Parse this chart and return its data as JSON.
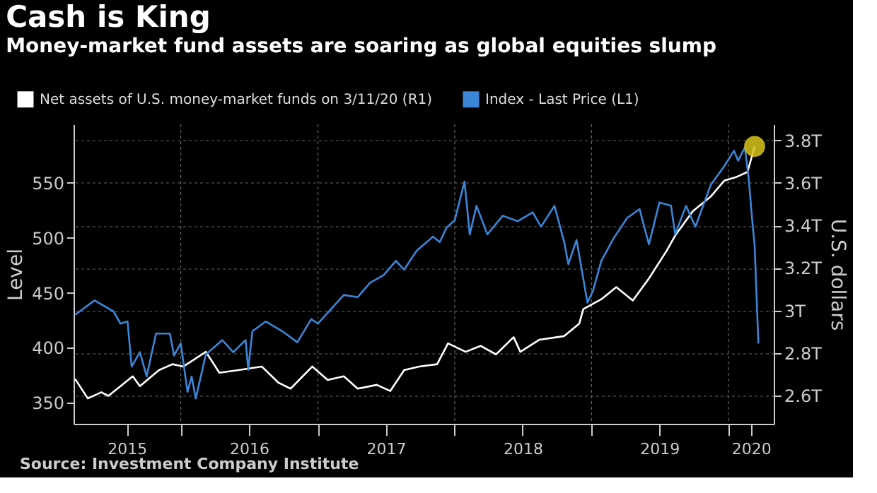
{
  "chart_data": {
    "type": "line",
    "title": "Cash is King",
    "subtitle": "Money-market fund assets are soaring as global equities slump",
    "ylabel": "Level",
    "y2label": "U.S. dollars",
    "annotations": [
      "Source: Investment Company Institute"
    ],
    "xlim": [
      "2015-03-21",
      "2020-05-01"
    ],
    "xticks": [
      {
        "value": "2015-08-10",
        "label": "2015"
      },
      {
        "value": "2016-01-01",
        "label": null
      },
      {
        "value": "2016-07-01",
        "label": "2016"
      },
      {
        "value": "2017-01-01",
        "label": null
      },
      {
        "value": "2017-07-01",
        "label": "2017"
      },
      {
        "value": "2018-01-01",
        "label": null
      },
      {
        "value": "2018-07-01",
        "label": "2018"
      },
      {
        "value": "2019-01-01",
        "label": null
      },
      {
        "value": "2019-07-01",
        "label": "2019"
      },
      {
        "value": "2020-01-01",
        "label": null
      },
      {
        "value": "2020-03-01",
        "label": "2020"
      }
    ],
    "ylim": [
      331,
      603
    ],
    "yticks": [
      350,
      400,
      450,
      500,
      550
    ],
    "y2lim": [
      2.468,
      3.875
    ],
    "y2ticks": [
      {
        "value": 2.6,
        "label": "2.6T"
      },
      {
        "value": 2.8,
        "label": "2.8T"
      },
      {
        "value": 3,
        "label": "3T"
      },
      {
        "value": 3.2,
        "label": "3.2T"
      },
      {
        "value": 3.4,
        "label": "3.4T"
      },
      {
        "value": 3.6,
        "label": "3.6T"
      },
      {
        "value": 3.8,
        "label": "3.8T"
      }
    ],
    "grid": true,
    "legend": "top left",
    "line_style": "solid",
    "marker": "none",
    "series": [
      {
        "name": "Net assets of U.S. money-market funds on 3/11/20 (R1)",
        "color": "#ffffff",
        "axis": "y2",
        "x": [
          "2015-03-25",
          "2015-04-28",
          "2015-06-03",
          "2015-06-22",
          "2015-08-26",
          "2015-09-14",
          "2015-11-04",
          "2015-12-10",
          "2016-01-08",
          "2016-03-08",
          "2016-04-13",
          "2016-06-03",
          "2016-08-04",
          "2016-09-17",
          "2016-10-20",
          "2016-12-17",
          "2017-01-27",
          "2017-03-11",
          "2017-04-17",
          "2017-06-07",
          "2017-07-13",
          "2017-08-19",
          "2017-09-28",
          "2017-11-15",
          "2017-12-14",
          "2018-01-30",
          "2018-03-11",
          "2018-04-21",
          "2018-06-07",
          "2018-06-25",
          "2018-08-15",
          "2018-10-20",
          "2018-11-29",
          "2018-12-10",
          "2019-01-27",
          "2019-03-08",
          "2019-04-21",
          "2019-06-03",
          "2019-07-21",
          "2019-08-12",
          "2019-09-28",
          "2019-11-15",
          "2019-12-21",
          "2020-01-23",
          "2020-02-21",
          "2020-03-11"
        ],
        "values": [
          2.679,
          2.587,
          2.616,
          2.599,
          2.691,
          2.645,
          2.72,
          2.748,
          2.737,
          2.806,
          2.708,
          2.72,
          2.737,
          2.662,
          2.633,
          2.737,
          2.674,
          2.691,
          2.633,
          2.651,
          2.622,
          2.72,
          2.737,
          2.748,
          2.846,
          2.806,
          2.834,
          2.794,
          2.875,
          2.806,
          2.863,
          2.88,
          2.938,
          3.007,
          3.053,
          3.11,
          3.047,
          3.151,
          3.283,
          3.352,
          3.467,
          3.536,
          3.61,
          3.628,
          3.651,
          3.771
        ]
      },
      {
        "name": "Index - Last Price (L1)",
        "color": "#3b86d6",
        "axis": "y",
        "x": [
          "2015-03-25",
          "2015-05-16",
          "2015-07-06",
          "2015-07-24",
          "2015-08-12",
          "2015-08-23",
          "2015-09-14",
          "2015-10-02",
          "2015-10-27",
          "2015-12-03",
          "2015-12-14",
          "2016-01-01",
          "2016-01-19",
          "2016-01-30",
          "2016-02-10",
          "2016-03-08",
          "2016-04-21",
          "2016-05-20",
          "2016-06-22",
          "2016-06-29",
          "2016-07-10",
          "2016-08-15",
          "2016-09-28",
          "2016-11-07",
          "2016-12-14",
          "2017-01-01",
          "2017-03-11",
          "2017-04-17",
          "2017-05-20",
          "2017-06-25",
          "2017-07-28",
          "2017-08-19",
          "2017-09-21",
          "2017-11-04",
          "2017-11-22",
          "2017-12-10",
          "2018-01-01",
          "2018-01-27",
          "2018-02-10",
          "2018-02-28",
          "2018-03-29",
          "2018-05-09",
          "2018-06-18",
          "2018-07-28",
          "2018-08-19",
          "2018-09-24",
          "2018-10-20",
          "2018-10-31",
          "2018-11-22",
          "2018-12-21",
          "2019-01-05",
          "2019-01-27",
          "2019-02-28",
          "2019-04-06",
          "2019-05-09",
          "2019-06-03",
          "2019-07-01",
          "2019-08-01",
          "2019-08-12",
          "2019-09-10",
          "2019-10-05",
          "2019-11-15",
          "2019-12-21",
          "2020-01-16",
          "2020-01-27",
          "2020-02-14",
          "2020-02-25",
          "2020-03-04",
          "2020-03-11",
          "2020-03-21"
        ],
        "values": [
          430,
          443,
          433,
          422,
          424,
          383,
          396,
          374,
          413,
          413,
          393,
          404,
          360,
          374,
          354,
          394,
          407,
          396,
          407,
          380,
          415,
          424,
          415,
          405,
          426,
          422,
          448,
          446,
          459,
          466,
          479,
          471,
          488,
          501,
          496,
          509,
          516,
          551,
          503,
          529,
          503,
          520,
          515,
          523,
          510,
          529,
          496,
          476,
          498,
          441,
          452,
          479,
          499,
          518,
          526,
          494,
          532,
          529,
          503,
          529,
          510,
          548,
          565,
          579,
          570,
          582,
          551,
          518,
          493,
          404
        ]
      },
      {
        "type": "scatter",
        "marker": "circle",
        "color": "#d8c51c",
        "axis": "y2",
        "x": [
          "2020-03-11"
        ],
        "values": [
          3.771
        ]
      }
    ]
  }
}
